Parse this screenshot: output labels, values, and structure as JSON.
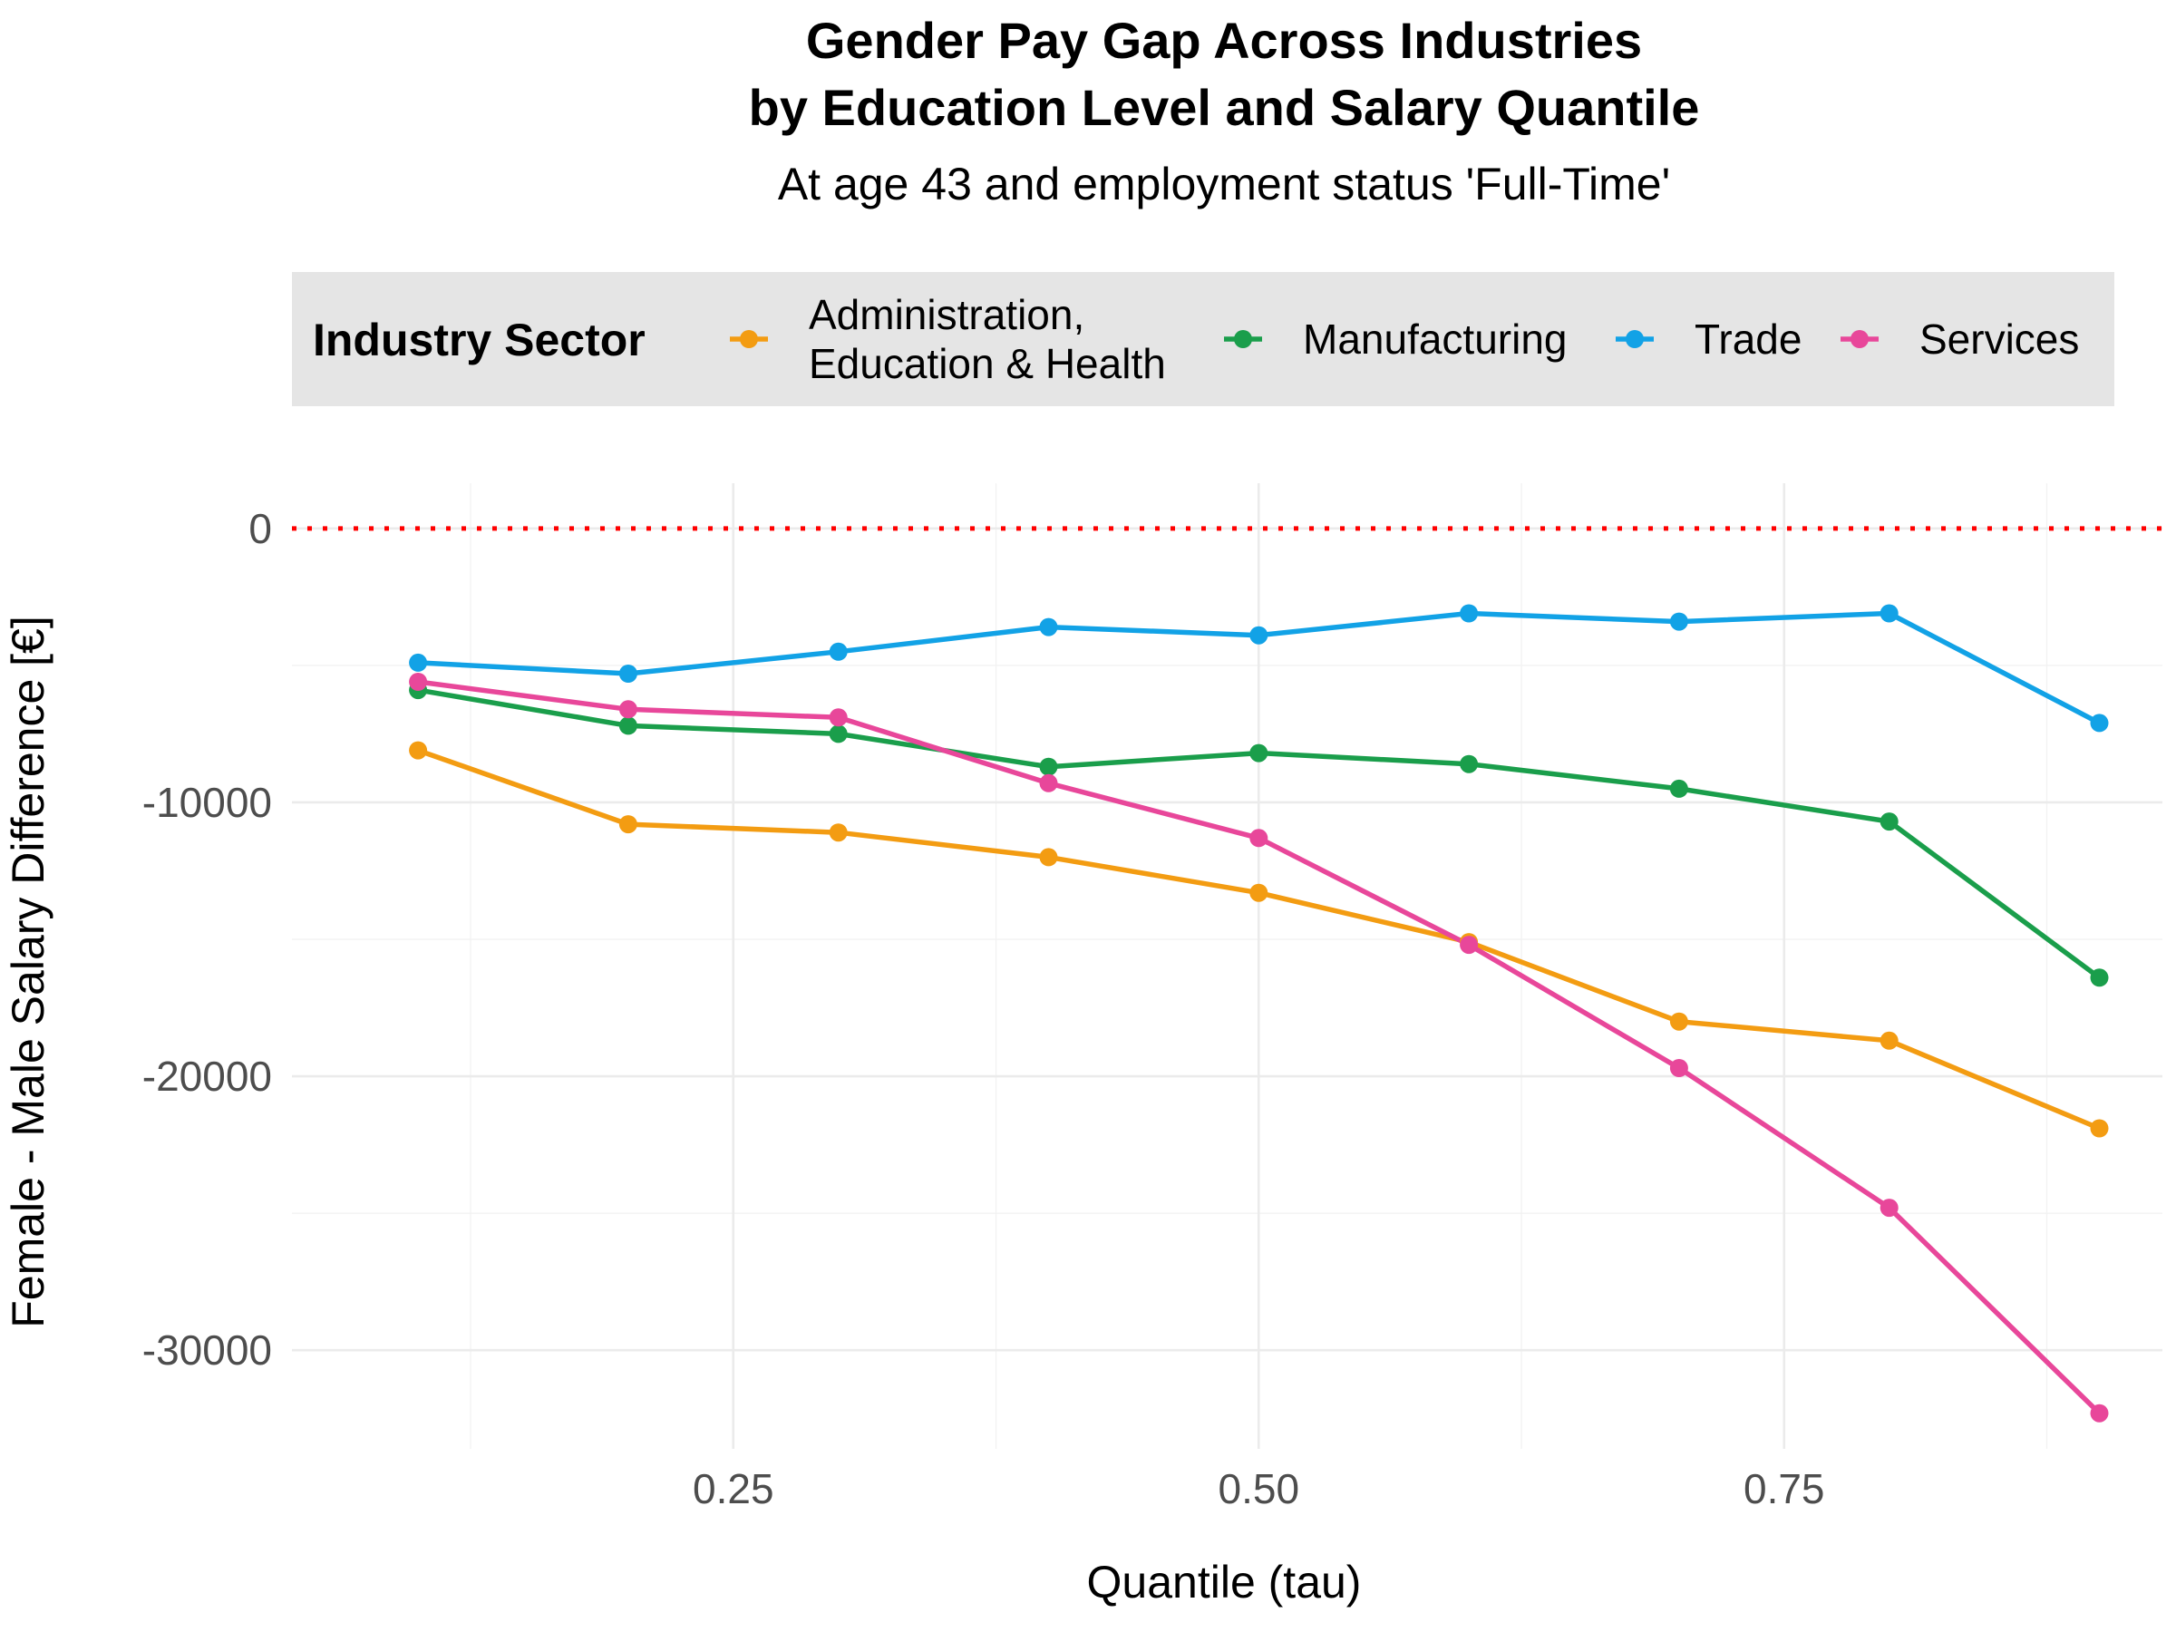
{
  "chart_data": {
    "type": "line",
    "title_lines": [
      "Gender Pay Gap Across Industries",
      "by Education Level and Salary Quantile"
    ],
    "subtitle": "At age 43 and employment status 'Full-Time'",
    "xlabel": "Quantile (tau)",
    "ylabel": "Female - Male Salary Difference [€]",
    "x_ticks": [
      "0.25",
      "0.50",
      "0.75"
    ],
    "x_tick_values": [
      0.25,
      0.5,
      0.75
    ],
    "y_ticks": [
      "0",
      "-10000",
      "-20000",
      "-30000"
    ],
    "y_tick_values": [
      0,
      -10000,
      -20000,
      -30000
    ],
    "xlim": [
      0.04,
      0.93
    ],
    "ylim": [
      -33600,
      1650
    ],
    "grid": true,
    "reference_line": {
      "y": 0,
      "color": "#ff0000",
      "style": "dotted"
    },
    "legend": {
      "title": "Industry Sector",
      "position": "top"
    },
    "x": [
      0.1,
      0.2,
      0.3,
      0.4,
      0.5,
      0.6,
      0.7,
      0.8,
      0.9
    ],
    "series": [
      {
        "name": "Administration,\nEducation & Health",
        "color": "#f39c12",
        "values": [
          -8100,
          -10800,
          -11100,
          -12000,
          -13300,
          -15100,
          -18000,
          -18700,
          -21900
        ]
      },
      {
        "name": "Manufacturing",
        "color": "#1a9e4b",
        "values": [
          -5900,
          -7200,
          -7500,
          -8700,
          -8200,
          -8600,
          -9500,
          -10700,
          -16400
        ]
      },
      {
        "name": "Trade",
        "color": "#12a2e6",
        "values": [
          -4900,
          -5300,
          -4500,
          -3600,
          -3900,
          -3100,
          -3400,
          -3100,
          -7100
        ]
      },
      {
        "name": "Services",
        "color": "#e8479a",
        "values": [
          -5600,
          -6600,
          -6900,
          -9300,
          -11300,
          -15200,
          -19700,
          -24800,
          -32300
        ]
      }
    ]
  }
}
